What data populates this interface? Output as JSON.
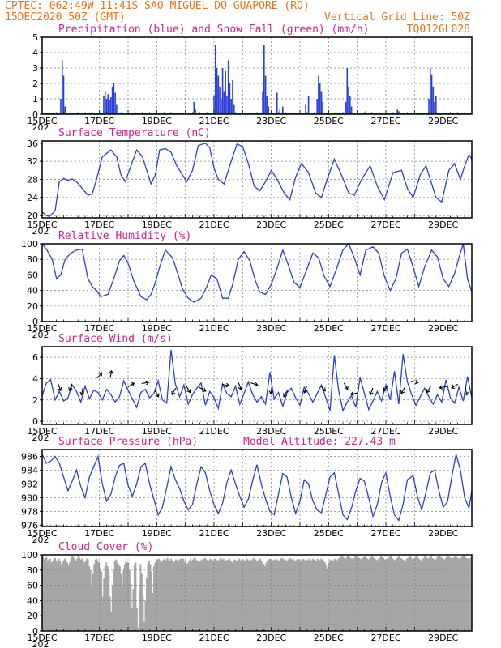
{
  "header": {
    "line1": "CPTEC:  062:49W-11:41S  SAO MIGUEL DO GUAPORE (RO)",
    "line2_left": "15DEC2020 50Z (GMT)",
    "line2_right": "Vertical Grid Line: 50Z",
    "line3_right": "TQ0126L028"
  },
  "x_axis": {
    "labels": [
      "15DEC",
      "17DEC",
      "19DEC",
      "21DEC",
      "23DEC",
      "25DEC",
      "27DEC",
      "29DEC"
    ],
    "year_stub": "202",
    "days": 15
  },
  "colors": {
    "header": "#e8741a",
    "title": "#d02090",
    "line": "#2a3fd8",
    "precip": "#2a3fd8",
    "snow": "#22aa22",
    "cloud": "#a6a6a6",
    "arrow": "#000000"
  },
  "chart_data": [
    {
      "type": "bar",
      "title": "Precipitation (blue) and Snow Fall (green) (mm/h)",
      "ylim": [
        0,
        5
      ],
      "yticks": [
        0,
        1,
        2,
        3,
        4,
        5
      ],
      "series": [
        {
          "name": "Precipitation",
          "x": [
            0.65,
            0.7,
            0.75,
            0.8,
            2.15,
            2.2,
            2.25,
            2.3,
            2.35,
            2.4,
            2.45,
            2.5,
            2.55,
            2.6,
            5.3,
            5.35,
            6.0,
            6.05,
            6.1,
            6.15,
            6.2,
            6.25,
            6.3,
            6.35,
            6.4,
            6.45,
            6.5,
            6.55,
            6.6,
            6.65,
            6.7,
            7.7,
            7.75,
            7.8,
            7.85,
            7.9,
            8.2,
            8.3,
            8.4,
            9.2,
            9.3,
            9.6,
            9.65,
            9.7,
            9.75,
            9.8,
            10.6,
            10.65,
            10.7,
            10.75,
            10.8,
            11.3,
            12.4,
            12.45,
            13.5,
            13.55,
            13.6,
            13.65,
            13.7,
            13.75
          ],
          "values": [
            1.0,
            3.5,
            2.5,
            0.5,
            1.2,
            1.5,
            1.0,
            1.3,
            0.9,
            1.1,
            1.8,
            2.0,
            1.4,
            0.6,
            0.8,
            0.3,
            1.2,
            4.5,
            3.0,
            2.5,
            1.8,
            1.0,
            3.0,
            1.5,
            2.8,
            1.2,
            3.5,
            2.0,
            1.0,
            2.2,
            0.6,
            1.5,
            4.5,
            2.5,
            1.2,
            0.5,
            1.4,
            0.3,
            0.5,
            0.6,
            1.2,
            1.0,
            2.5,
            2.0,
            1.5,
            0.8,
            0.8,
            3.0,
            1.8,
            1.2,
            0.5,
            0.2,
            0.3,
            0.2,
            1.0,
            3.0,
            2.6,
            1.8,
            0.8,
            1.2
          ]
        },
        {
          "name": "Snow Fall",
          "values": [
            0
          ]
        }
      ]
    },
    {
      "type": "line",
      "title": "Surface Temperature (nC)",
      "ylim": [
        19.5,
        36.5
      ],
      "yticks": [
        20,
        24,
        28,
        32,
        36
      ],
      "x": [
        0,
        0.15,
        0.25,
        0.45,
        0.6,
        0.75,
        0.9,
        1.05,
        1.2,
        1.4,
        1.6,
        1.75,
        1.9,
        2.1,
        2.4,
        2.6,
        2.75,
        2.9,
        3.1,
        3.3,
        3.5,
        3.65,
        3.8,
        3.95,
        4.1,
        4.3,
        4.5,
        4.7,
        4.9,
        5.05,
        5.25,
        5.45,
        5.7,
        5.85,
        6.0,
        6.15,
        6.35,
        6.6,
        6.8,
        7.0,
        7.2,
        7.4,
        7.6,
        7.8,
        8.0,
        8.2,
        8.45,
        8.65,
        8.85,
        9.05,
        9.3,
        9.55,
        9.75,
        9.95,
        10.2,
        10.45,
        10.7,
        10.9,
        11.15,
        11.45,
        11.7,
        11.95,
        12.25,
        12.55,
        12.75,
        12.95,
        13.2,
        13.4,
        13.6,
        13.75,
        13.95,
        14.2,
        14.4,
        14.6,
        14.75,
        14.9,
        15.0
      ],
      "values": [
        20.8,
        20.0,
        19.8,
        21.0,
        27.5,
        28.2,
        27.8,
        28.1,
        27.5,
        26.0,
        24.5,
        24.8,
        28.0,
        33.0,
        34.5,
        33.0,
        29.0,
        27.5,
        31.0,
        34.5,
        33.0,
        30.0,
        27.0,
        29.0,
        34.5,
        34.8,
        34.0,
        31.0,
        29.0,
        27.5,
        30.0,
        35.5,
        36.0,
        35.0,
        30.5,
        28.0,
        27.0,
        32.0,
        35.8,
        35.3,
        31.5,
        26.5,
        25.5,
        27.5,
        30.0,
        28.0,
        25.0,
        23.5,
        28.5,
        31.5,
        29.5,
        25.0,
        24.0,
        28.0,
        32.5,
        29.0,
        25.0,
        24.5,
        28.0,
        31.0,
        26.5,
        23.5,
        29.5,
        30.0,
        26.0,
        24.0,
        29.0,
        31.0,
        27.0,
        24.0,
        23.0,
        30.0,
        31.5,
        28.0,
        31.0,
        33.5,
        32.5
      ]
    },
    {
      "type": "line",
      "title": "Relative Humidity (%)",
      "ylim": [
        0,
        100
      ],
      "yticks": [
        0,
        20,
        40,
        60,
        80,
        100
      ],
      "x": [
        0,
        0.15,
        0.35,
        0.5,
        0.65,
        0.8,
        1.0,
        1.2,
        1.4,
        1.6,
        1.75,
        1.9,
        2.05,
        2.3,
        2.5,
        2.7,
        2.85,
        3.0,
        3.2,
        3.45,
        3.65,
        3.8,
        3.95,
        4.1,
        4.3,
        4.55,
        4.75,
        4.9,
        5.1,
        5.3,
        5.55,
        5.75,
        5.9,
        6.1,
        6.3,
        6.5,
        6.65,
        6.85,
        7.05,
        7.25,
        7.45,
        7.6,
        7.8,
        8.0,
        8.2,
        8.4,
        8.6,
        8.8,
        9.0,
        9.25,
        9.45,
        9.65,
        9.85,
        10.05,
        10.3,
        10.5,
        10.7,
        10.9,
        11.1,
        11.3,
        11.55,
        11.75,
        11.95,
        12.15,
        12.35,
        12.55,
        12.75,
        12.95,
        13.15,
        13.35,
        13.6,
        13.8,
        14.0,
        14.2,
        14.4,
        14.55,
        14.7,
        14.85,
        15.0
      ],
      "values": [
        100,
        93,
        80,
        55,
        60,
        80,
        88,
        92,
        93,
        55,
        45,
        40,
        32,
        35,
        55,
        78,
        85,
        75,
        52,
        32,
        28,
        35,
        50,
        70,
        92,
        82,
        60,
        42,
        30,
        25,
        30,
        45,
        60,
        55,
        30,
        30,
        48,
        80,
        90,
        78,
        52,
        38,
        35,
        48,
        68,
        92,
        72,
        50,
        44,
        68,
        88,
        82,
        58,
        45,
        70,
        92,
        100,
        82,
        60,
        92,
        96,
        88,
        58,
        40,
        55,
        88,
        93,
        70,
        45,
        70,
        92,
        83,
        55,
        45,
        62,
        82,
        100,
        55,
        38
      ]
    },
    {
      "type": "line",
      "title": "Surface Wind (m/s)",
      "ylim": [
        -0.3,
        7.0
      ],
      "yticks": [
        0,
        2,
        4,
        6
      ],
      "x": [
        0,
        0.15,
        0.3,
        0.45,
        0.6,
        0.75,
        0.9,
        1.05,
        1.2,
        1.35,
        1.5,
        1.65,
        1.8,
        1.95,
        2.1,
        2.25,
        2.4,
        2.55,
        2.7,
        2.85,
        3.0,
        3.15,
        3.3,
        3.45,
        3.6,
        3.75,
        3.9,
        4.05,
        4.2,
        4.35,
        4.5,
        4.65,
        4.8,
        4.95,
        5.1,
        5.25,
        5.4,
        5.55,
        5.7,
        5.85,
        6.0,
        6.15,
        6.3,
        6.45,
        6.6,
        6.75,
        6.9,
        7.05,
        7.2,
        7.35,
        7.5,
        7.65,
        7.8,
        7.95,
        8.1,
        8.25,
        8.4,
        8.55,
        8.7,
        8.85,
        9.0,
        9.15,
        9.3,
        9.45,
        9.6,
        9.75,
        9.9,
        10.05,
        10.2,
        10.35,
        10.5,
        10.65,
        10.8,
        10.95,
        11.1,
        11.25,
        11.4,
        11.55,
        11.7,
        11.85,
        12.0,
        12.15,
        12.3,
        12.45,
        12.6,
        12.75,
        12.9,
        13.05,
        13.2,
        13.35,
        13.5,
        13.65,
        13.8,
        13.95,
        14.1,
        14.25,
        14.4,
        14.55,
        14.7,
        14.85,
        15.0
      ],
      "values": [
        2.4,
        3.6,
        3.9,
        2.0,
        2.8,
        1.9,
        2.2,
        3.4,
        2.8,
        1.8,
        3.3,
        2.1,
        2.9,
        2.7,
        2.0,
        3.0,
        2.5,
        1.8,
        2.3,
        3.8,
        2.9,
        2.1,
        1.3,
        2.7,
        3.0,
        2.2,
        2.6,
        3.8,
        2.0,
        1.7,
        6.7,
        3.5,
        2.3,
        3.4,
        1.6,
        2.5,
        3.1,
        3.6,
        1.5,
        2.8,
        2.2,
        1.2,
        3.5,
        2.6,
        2.3,
        3.3,
        1.6,
        2.6,
        3.7,
        2.5,
        1.8,
        2.3,
        1.6,
        4.6,
        2.1,
        2.7,
        1.4,
        2.7,
        3.1,
        2.2,
        1.5,
        3.2,
        2.6,
        1.8,
        2.6,
        3.4,
        2.2,
        1.0,
        6.2,
        2.9,
        1.0,
        1.8,
        2.4,
        1.3,
        4.1,
        2.6,
        1.1,
        1.9,
        2.8,
        1.9,
        3.4,
        2.0,
        4.7,
        1.6,
        6.3,
        3.7,
        2.5,
        1.5,
        2.3,
        3.1,
        2.3,
        1.6,
        2.5,
        1.8,
        3.9,
        2.2,
        1.7,
        3.2,
        1.9,
        4.2,
        2.2
      ]
    },
    {
      "type": "line",
      "title": "Surface Pressure (hPa)",
      "annotation": "Model Altitude: 227.43 m",
      "ylim": [
        975.8,
        987.0
      ],
      "yticks": [
        976,
        978,
        980,
        982,
        984,
        986
      ],
      "x": [
        0,
        0.15,
        0.3,
        0.45,
        0.6,
        0.75,
        0.9,
        1.05,
        1.2,
        1.35,
        1.5,
        1.65,
        1.8,
        1.95,
        2.1,
        2.25,
        2.4,
        2.55,
        2.7,
        2.85,
        3.0,
        3.15,
        3.3,
        3.45,
        3.6,
        3.75,
        3.9,
        4.05,
        4.2,
        4.35,
        4.5,
        4.65,
        4.8,
        4.95,
        5.1,
        5.25,
        5.4,
        5.55,
        5.7,
        5.85,
        6.0,
        6.15,
        6.3,
        6.45,
        6.6,
        6.75,
        6.9,
        7.05,
        7.2,
        7.35,
        7.5,
        7.65,
        7.8,
        7.95,
        8.1,
        8.25,
        8.4,
        8.55,
        8.7,
        8.85,
        9.0,
        9.15,
        9.3,
        9.45,
        9.6,
        9.75,
        9.9,
        10.05,
        10.2,
        10.35,
        10.5,
        10.65,
        10.8,
        10.95,
        11.1,
        11.25,
        11.4,
        11.55,
        11.7,
        11.85,
        12.0,
        12.15,
        12.3,
        12.45,
        12.6,
        12.75,
        12.95,
        13.1,
        13.25,
        13.4,
        13.55,
        13.7,
        13.85,
        14.0,
        14.15,
        14.3,
        14.45,
        14.6,
        14.75,
        14.9,
        15.0
      ],
      "values": [
        986.3,
        985.0,
        985.3,
        986.0,
        985.0,
        983.0,
        981.0,
        982.4,
        984.0,
        981.6,
        980.0,
        983.0,
        984.5,
        986.0,
        982.0,
        979.5,
        980.5,
        983.0,
        984.7,
        985.0,
        981.8,
        980.2,
        982.0,
        984.5,
        985.0,
        982.0,
        979.8,
        977.5,
        978.6,
        981.5,
        984.5,
        982.6,
        981.3,
        979.5,
        978.2,
        979.0,
        982.0,
        984.5,
        983.6,
        981.0,
        979.0,
        977.7,
        979.2,
        982.2,
        984.0,
        982.0,
        980.2,
        978.6,
        979.8,
        982.5,
        984.8,
        982.0,
        979.8,
        978.0,
        977.5,
        980.5,
        983.5,
        983.0,
        980.0,
        977.7,
        979.5,
        982.6,
        982.0,
        979.5,
        978.2,
        977.8,
        980.4,
        983.0,
        983.6,
        980.6,
        977.5,
        976.8,
        978.5,
        981.0,
        982.8,
        982.4,
        980.0,
        977.3,
        979.0,
        982.2,
        983.6,
        980.2,
        977.5,
        976.7,
        979.0,
        982.6,
        983.2,
        980.2,
        978.2,
        980.8,
        983.6,
        984.0,
        981.0,
        978.6,
        979.4,
        983.0,
        986.3,
        984.0,
        980.0,
        978.5,
        981.0
      ]
    },
    {
      "type": "area",
      "title": "Cloud Cover (%)",
      "ylim": [
        0,
        100
      ],
      "yticks": [
        0,
        20,
        40,
        60,
        80,
        100
      ],
      "values": [
        98,
        95,
        96,
        97,
        92,
        94,
        95,
        90,
        92,
        94,
        96,
        93,
        90,
        95,
        92,
        88,
        90,
        93,
        95,
        92,
        90,
        86,
        90,
        95,
        98,
        97,
        95,
        92,
        95,
        98,
        96,
        94,
        95,
        93,
        90,
        92,
        95,
        94,
        85,
        80,
        60,
        75,
        88,
        94,
        95,
        92,
        90,
        82,
        78,
        45,
        70,
        85,
        90,
        85,
        80,
        45,
        25,
        60,
        80,
        92,
        94,
        90,
        88,
        85,
        75,
        60,
        80,
        88,
        92,
        90,
        90,
        80,
        62,
        30,
        55,
        88,
        90,
        30,
        5,
        55,
        88,
        75,
        45,
        12,
        40,
        70,
        88,
        92,
        88,
        78,
        50,
        85,
        90,
        92,
        94,
        95,
        93,
        90,
        92,
        94,
        95,
        93,
        96,
        94,
        92,
        95,
        93,
        90,
        92,
        94,
        93,
        92,
        94,
        95,
        93,
        95,
        92,
        90,
        88,
        90,
        93,
        95,
        92,
        94,
        96,
        95,
        93,
        92,
        90,
        92,
        94,
        93,
        95,
        96,
        94,
        92,
        93,
        95,
        94,
        92,
        93,
        95,
        94,
        92,
        93,
        95,
        96,
        94,
        95,
        93,
        92,
        94,
        93,
        95,
        92,
        90,
        92,
        94,
        93,
        92,
        94,
        95,
        93,
        92,
        94,
        92,
        93,
        95,
        94,
        92,
        94,
        93,
        95,
        96,
        94,
        93,
        92,
        94,
        95,
        93,
        90,
        88,
        85,
        90,
        92,
        94,
        95,
        93,
        92,
        94,
        93,
        95,
        94,
        92,
        93,
        95,
        96,
        94,
        95,
        93,
        92,
        94,
        96,
        95,
        94,
        95,
        93,
        92,
        94,
        95,
        94,
        92,
        93,
        95,
        94,
        92,
        94,
        93,
        95,
        92,
        93,
        95,
        94,
        93,
        92,
        95,
        94,
        93,
        95,
        94,
        92,
        90,
        86,
        82,
        88,
        92,
        94,
        93,
        92,
        95,
        94,
        93,
        95,
        96,
        97,
        98,
        97,
        96,
        95,
        97,
        98,
        97,
        96,
        95,
        94,
        96,
        98,
        99,
        97,
        96,
        95,
        94,
        96,
        97,
        98,
        96,
        95,
        94,
        96,
        97,
        98,
        96,
        95,
        94,
        93,
        95,
        96,
        98,
        97,
        96,
        94,
        93,
        95,
        96,
        97,
        98,
        96,
        95,
        93,
        94,
        96,
        97,
        98,
        96,
        95,
        94,
        93,
        92,
        95,
        96,
        97,
        98,
        96,
        94,
        95,
        97,
        98,
        97,
        95,
        94,
        92,
        95,
        96,
        98,
        97,
        96,
        95,
        97,
        98,
        96,
        95,
        93,
        94,
        97,
        98,
        99,
        97,
        96,
        95,
        94,
        96,
        97,
        98,
        97,
        96,
        95,
        96,
        97,
        98,
        97,
        96,
        95,
        96,
        97,
        98,
        99,
        97,
        96,
        95,
        94,
        96,
        97
      ]
    }
  ]
}
